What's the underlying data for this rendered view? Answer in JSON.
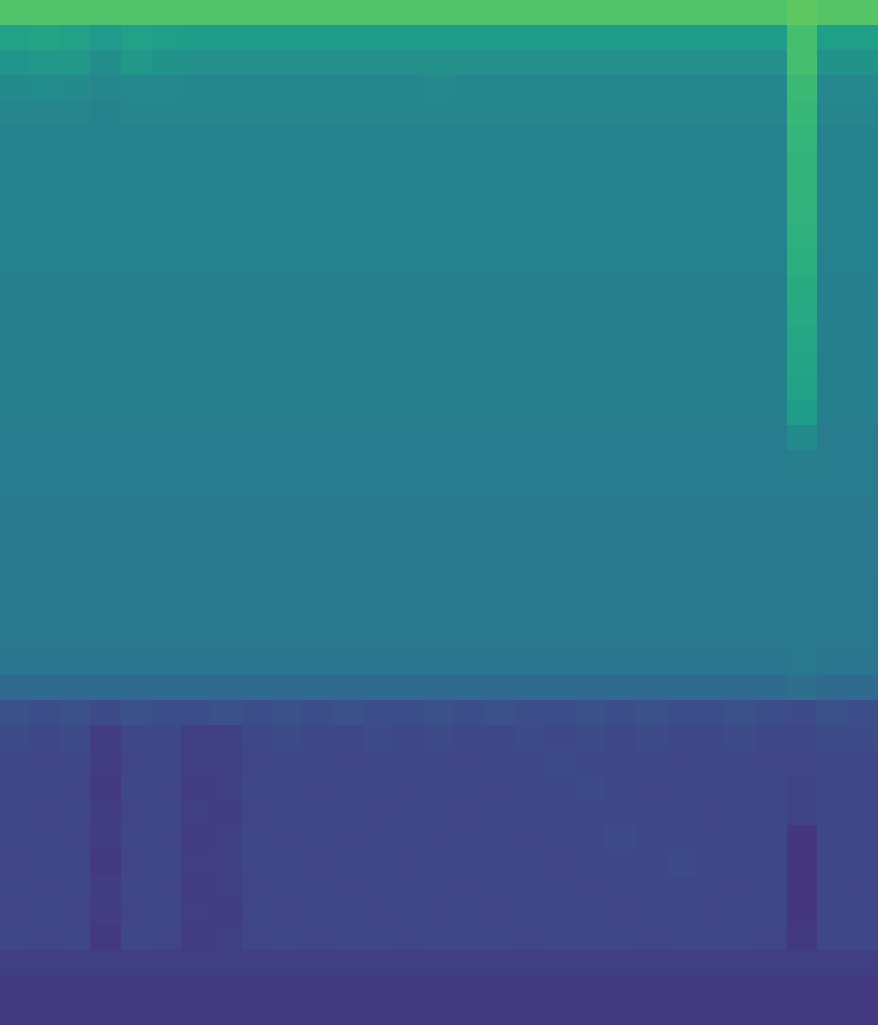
{
  "chart_data": {
    "type": "heatmap",
    "tick_labels": false,
    "grid": false,
    "clim": [
      0,
      100
    ],
    "cells": [
      [
        72,
        72,
        72,
        72,
        72,
        72,
        72,
        72,
        72,
        72,
        72,
        72,
        72,
        72,
        72,
        72,
        72,
        72,
        72,
        72,
        72,
        72,
        72,
        72,
        72,
        72,
        75,
        73,
        73
      ],
      [
        57,
        58,
        57,
        54,
        57,
        56,
        55,
        55,
        55,
        55,
        55,
        55,
        55,
        55,
        55,
        55,
        55,
        55,
        55,
        55,
        55,
        55,
        55,
        55,
        55,
        55,
        70,
        56,
        56
      ],
      [
        52,
        53,
        53,
        49,
        53,
        51,
        50,
        50,
        50,
        50,
        50,
        50,
        50,
        50,
        50,
        50,
        50,
        50,
        50,
        50,
        50,
        50,
        50,
        50,
        50,
        50,
        70,
        51,
        51
      ],
      [
        48,
        49,
        48,
        46,
        47,
        47,
        46,
        46,
        46,
        46,
        46,
        46,
        46,
        46,
        47,
        46,
        46,
        46,
        46,
        46,
        46,
        46,
        46,
        46,
        46,
        46,
        68,
        47,
        47
      ],
      [
        46,
        46,
        46,
        45,
        46,
        46,
        46,
        46,
        46,
        46,
        46,
        46,
        46,
        46,
        46,
        46,
        46,
        46,
        46,
        46,
        46,
        46,
        46,
        46,
        46,
        46,
        67,
        46,
        46
      ],
      [
        45,
        45,
        45,
        44,
        45,
        45,
        45,
        45,
        45,
        45,
        45,
        45,
        45,
        45,
        45,
        45,
        45,
        45,
        45,
        45,
        45,
        45,
        45,
        45,
        45,
        45,
        66,
        45,
        45
      ],
      [
        45,
        45,
        45,
        45,
        45,
        45,
        45,
        45,
        45,
        45,
        45,
        45,
        45,
        45,
        45,
        45,
        45,
        45,
        45,
        45,
        45,
        45,
        45,
        45,
        45,
        45,
        65,
        45,
        45
      ],
      [
        45,
        45,
        45,
        45,
        45,
        45,
        45,
        45,
        45,
        45,
        45,
        45,
        45,
        45,
        45,
        45,
        45,
        45,
        45,
        45,
        45,
        45,
        45,
        45,
        45,
        45,
        65,
        45,
        45
      ],
      [
        44,
        44,
        44,
        44,
        44,
        44,
        44,
        44,
        44,
        44,
        44,
        44,
        44,
        44,
        44,
        44,
        44,
        44,
        44,
        44,
        44,
        44,
        44,
        44,
        44,
        44,
        64,
        44,
        44
      ],
      [
        44,
        44,
        44,
        44,
        44,
        44,
        44,
        44,
        44,
        44,
        44,
        44,
        44,
        44,
        44,
        44,
        44,
        44,
        44,
        44,
        44,
        44,
        44,
        44,
        44,
        44,
        63,
        44,
        44
      ],
      [
        44,
        44,
        44,
        44,
        44,
        44,
        44,
        44,
        44,
        44,
        44,
        44,
        44,
        44,
        44,
        44,
        44,
        44,
        44,
        44,
        44,
        44,
        44,
        44,
        44,
        44,
        62,
        44,
        44
      ],
      [
        43,
        43,
        43,
        43,
        43,
        43,
        43,
        43,
        43,
        43,
        43,
        43,
        43,
        43,
        43,
        43,
        43,
        43,
        43,
        43,
        43,
        43,
        43,
        43,
        43,
        43,
        61,
        43,
        43
      ],
      [
        43,
        43,
        43,
        43,
        43,
        43,
        43,
        43,
        43,
        43,
        43,
        43,
        43,
        43,
        43,
        43,
        43,
        43,
        43,
        43,
        43,
        43,
        43,
        43,
        43,
        43,
        60,
        43,
        43
      ],
      [
        43,
        43,
        43,
        43,
        43,
        43,
        43,
        43,
        43,
        43,
        43,
        43,
        43,
        43,
        43,
        43,
        43,
        43,
        43,
        43,
        43,
        43,
        43,
        43,
        43,
        43,
        59,
        43,
        43
      ],
      [
        43,
        43,
        43,
        43,
        43,
        43,
        43,
        43,
        43,
        43,
        43,
        43,
        43,
        43,
        43,
        43,
        43,
        43,
        43,
        43,
        43,
        43,
        43,
        43,
        43,
        43,
        58,
        43,
        43
      ],
      [
        43,
        43,
        43,
        43,
        43,
        43,
        43,
        43,
        43,
        43,
        43,
        43,
        43,
        43,
        43,
        43,
        43,
        43,
        43,
        43,
        43,
        43,
        43,
        43,
        43,
        43,
        57,
        43,
        43
      ],
      [
        43,
        43,
        43,
        43,
        43,
        43,
        43,
        43,
        43,
        43,
        43,
        43,
        43,
        43,
        43,
        43,
        43,
        43,
        43,
        43,
        43,
        43,
        43,
        43,
        43,
        43,
        55,
        43,
        43
      ],
      [
        42,
        42,
        42,
        42,
        42,
        42,
        42,
        42,
        42,
        42,
        42,
        42,
        42,
        42,
        42,
        42,
        42,
        42,
        42,
        42,
        42,
        42,
        42,
        42,
        42,
        42,
        48,
        42,
        42
      ],
      [
        42,
        42,
        42,
        42,
        42,
        42,
        42,
        42,
        42,
        42,
        42,
        42,
        42,
        42,
        42,
        42,
        42,
        42,
        42,
        42,
        42,
        42,
        42,
        42,
        42,
        42,
        43,
        42,
        42
      ],
      [
        42,
        42,
        42,
        42,
        42,
        42,
        42,
        42,
        42,
        42,
        42,
        42,
        42,
        42,
        42,
        42,
        42,
        42,
        42,
        42,
        42,
        42,
        42,
        42,
        42,
        42,
        42,
        42,
        42
      ],
      [
        41,
        41,
        41,
        41,
        41,
        41,
        41,
        41,
        41,
        41,
        41,
        41,
        41,
        41,
        41,
        41,
        41,
        41,
        41,
        41,
        41,
        41,
        41,
        41,
        41,
        41,
        41,
        41,
        41
      ],
      [
        41,
        41,
        41,
        41,
        41,
        41,
        41,
        41,
        41,
        41,
        41,
        41,
        41,
        41,
        41,
        41,
        41,
        41,
        41,
        41,
        41,
        41,
        41,
        41,
        41,
        41,
        41,
        41,
        41
      ],
      [
        41,
        41,
        41,
        41,
        41,
        41,
        41,
        41,
        41,
        41,
        41,
        41,
        41,
        41,
        41,
        41,
        41,
        41,
        41,
        41,
        41,
        41,
        41,
        41,
        41,
        41,
        41,
        41,
        41
      ],
      [
        40,
        40,
        40,
        40,
        40,
        40,
        40,
        40,
        40,
        40,
        40,
        40,
        40,
        40,
        40,
        40,
        40,
        40,
        40,
        40,
        40,
        40,
        40,
        40,
        40,
        40,
        41,
        40,
        40
      ],
      [
        40,
        40,
        40,
        40,
        40,
        40,
        40,
        40,
        40,
        40,
        40,
        40,
        40,
        40,
        40,
        40,
        40,
        40,
        40,
        40,
        40,
        40,
        40,
        40,
        40,
        40,
        41,
        40,
        40
      ],
      [
        40,
        40,
        40,
        40,
        40,
        40,
        40,
        40,
        40,
        40,
        40,
        40,
        40,
        40,
        40,
        40,
        40,
        40,
        40,
        40,
        40,
        40,
        40,
        40,
        40,
        40,
        41,
        40,
        40
      ],
      [
        39,
        39,
        39,
        39,
        39,
        39,
        39,
        39,
        39,
        39,
        39,
        39,
        39,
        39,
        39,
        39,
        39,
        39,
        39,
        39,
        39,
        39,
        39,
        39,
        39,
        39,
        40,
        39,
        39
      ],
      [
        34,
        34,
        34,
        34,
        34,
        34,
        34,
        34,
        34,
        34,
        34,
        34,
        34,
        34,
        34,
        34,
        34,
        34,
        34,
        34,
        34,
        34,
        34,
        34,
        34,
        34,
        36,
        34,
        34
      ],
      [
        25,
        24,
        25,
        23,
        25,
        24,
        24,
        25,
        24,
        25,
        24,
        25,
        24,
        24,
        25,
        24,
        25,
        24,
        24,
        25,
        24,
        25,
        24,
        24,
        25,
        24,
        23,
        25,
        24
      ],
      [
        23,
        22,
        23,
        18,
        22,
        22,
        19,
        19,
        22,
        23,
        22,
        22,
        23,
        22,
        23,
        22,
        22,
        23,
        22,
        23,
        22,
        23,
        22,
        22,
        23,
        22,
        22,
        23,
        23
      ],
      [
        22,
        21,
        22,
        18,
        21,
        22,
        19,
        19,
        21,
        22,
        22,
        21,
        22,
        22,
        22,
        21,
        22,
        22,
        23,
        22,
        22,
        22,
        21,
        22,
        22,
        21,
        21,
        22,
        22
      ],
      [
        22,
        22,
        21,
        17,
        22,
        21,
        18,
        19,
        22,
        22,
        21,
        22,
        22,
        21,
        22,
        22,
        21,
        22,
        22,
        23,
        22,
        21,
        22,
        22,
        22,
        22,
        20,
        22,
        22
      ],
      [
        22,
        21,
        22,
        18,
        21,
        22,
        19,
        18,
        21,
        22,
        22,
        22,
        21,
        22,
        22,
        21,
        22,
        22,
        22,
        22,
        22,
        22,
        22,
        21,
        22,
        22,
        20,
        22,
        22
      ],
      [
        22,
        22,
        21,
        18,
        22,
        21,
        18,
        19,
        22,
        21,
        22,
        21,
        22,
        22,
        21,
        22,
        22,
        21,
        22,
        22,
        23,
        22,
        22,
        22,
        22,
        22,
        16,
        22,
        22
      ],
      [
        21,
        22,
        22,
        17,
        21,
        22,
        19,
        19,
        22,
        22,
        21,
        22,
        22,
        21,
        22,
        22,
        22,
        22,
        21,
        22,
        22,
        22,
        23,
        22,
        22,
        22,
        16,
        22,
        22
      ],
      [
        22,
        21,
        22,
        18,
        22,
        21,
        18,
        19,
        21,
        22,
        22,
        21,
        22,
        22,
        22,
        21,
        22,
        22,
        22,
        21,
        22,
        22,
        22,
        22,
        21,
        22,
        16,
        22,
        21
      ],
      [
        21,
        22,
        21,
        18,
        21,
        22,
        19,
        18,
        22,
        21,
        22,
        22,
        21,
        22,
        21,
        22,
        21,
        22,
        22,
        22,
        21,
        22,
        22,
        21,
        22,
        22,
        16,
        22,
        22
      ],
      [
        22,
        21,
        22,
        17,
        22,
        21,
        18,
        19,
        21,
        22,
        21,
        22,
        22,
        21,
        22,
        22,
        22,
        21,
        22,
        22,
        22,
        21,
        22,
        22,
        22,
        21,
        17,
        22,
        22
      ],
      [
        19,
        19,
        19,
        19,
        19,
        19,
        19,
        19,
        19,
        19,
        19,
        19,
        19,
        19,
        19,
        19,
        19,
        19,
        19,
        19,
        19,
        19,
        19,
        19,
        19,
        19,
        19,
        19,
        19
      ],
      [
        17,
        17,
        17,
        17,
        17,
        17,
        17,
        17,
        17,
        17,
        17,
        17,
        17,
        17,
        17,
        17,
        17,
        17,
        17,
        17,
        17,
        17,
        17,
        17,
        17,
        17,
        17,
        17,
        17
      ],
      [
        17,
        17,
        17,
        17,
        17,
        17,
        17,
        17,
        17,
        17,
        17,
        17,
        17,
        17,
        17,
        17,
        17,
        17,
        17,
        17,
        17,
        17,
        17,
        17,
        17,
        17,
        17,
        17,
        17
      ]
    ]
  }
}
